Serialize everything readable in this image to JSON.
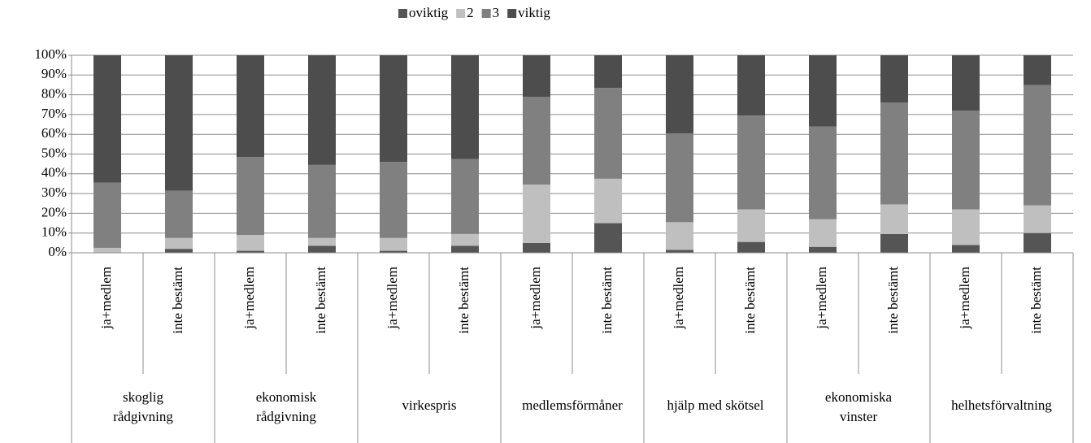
{
  "chart_data": {
    "type": "stacked-bar-percent",
    "categories": [
      "ja+medlem",
      "inte bestämt",
      "ja+medlem",
      "inte bestämt",
      "ja+medlem",
      "inte bestämt",
      "ja+medlem",
      "inte bestämt",
      "ja+medlem",
      "inte bestämt",
      "ja+medlem",
      "inte bestämt",
      "ja+medlem",
      "inte bestämt"
    ],
    "groups": [
      [
        "skoglig",
        "rådgivning"
      ],
      [
        "ekonomisk",
        "rådgivning"
      ],
      [
        "virkespris"
      ],
      [
        "medlemsförmåner"
      ],
      [
        "hjälp med skötsel"
      ],
      [
        "ekonomiska",
        "vinster"
      ],
      [
        "helhetsförvaltning"
      ]
    ],
    "series": [
      {
        "name": "oviktig",
        "color": "#555555",
        "values": [
          0,
          2,
          1,
          3.5,
          1,
          3.5,
          5,
          15,
          1.5,
          5.5,
          3,
          9.5,
          4,
          10
        ]
      },
      {
        "name": "2",
        "color": "#bfbfbf",
        "values": [
          2.5,
          5.5,
          8,
          4,
          6.5,
          6,
          29.5,
          22.5,
          14,
          16.5,
          14,
          15,
          18,
          14
        ]
      },
      {
        "name": "3",
        "color": "#808080",
        "values": [
          33,
          24,
          39.5,
          37,
          38.5,
          38,
          44.5,
          46,
          45,
          47.5,
          47,
          51.5,
          50,
          61
        ]
      },
      {
        "name": "viktig",
        "color": "#4d4d4d",
        "values": [
          64.5,
          68.5,
          51.5,
          55.5,
          54,
          52.5,
          21,
          16.5,
          39.5,
          30.5,
          36,
          24,
          28,
          15
        ]
      }
    ],
    "ylim": [
      0,
      100
    ],
    "yticks": [
      {
        "value": 0,
        "label": "0%"
      },
      {
        "value": 10,
        "label": "10%"
      },
      {
        "value": 20,
        "label": "20%"
      },
      {
        "value": 30,
        "label": "30%"
      },
      {
        "value": 40,
        "label": "40%"
      },
      {
        "value": 50,
        "label": "50%"
      },
      {
        "value": 60,
        "label": "60%"
      },
      {
        "value": 70,
        "label": "70%"
      },
      {
        "value": 80,
        "label": "80%"
      },
      {
        "value": 90,
        "label": "90%"
      },
      {
        "value": 100,
        "label": "100%"
      }
    ],
    "grid": true,
    "legend": "top"
  }
}
